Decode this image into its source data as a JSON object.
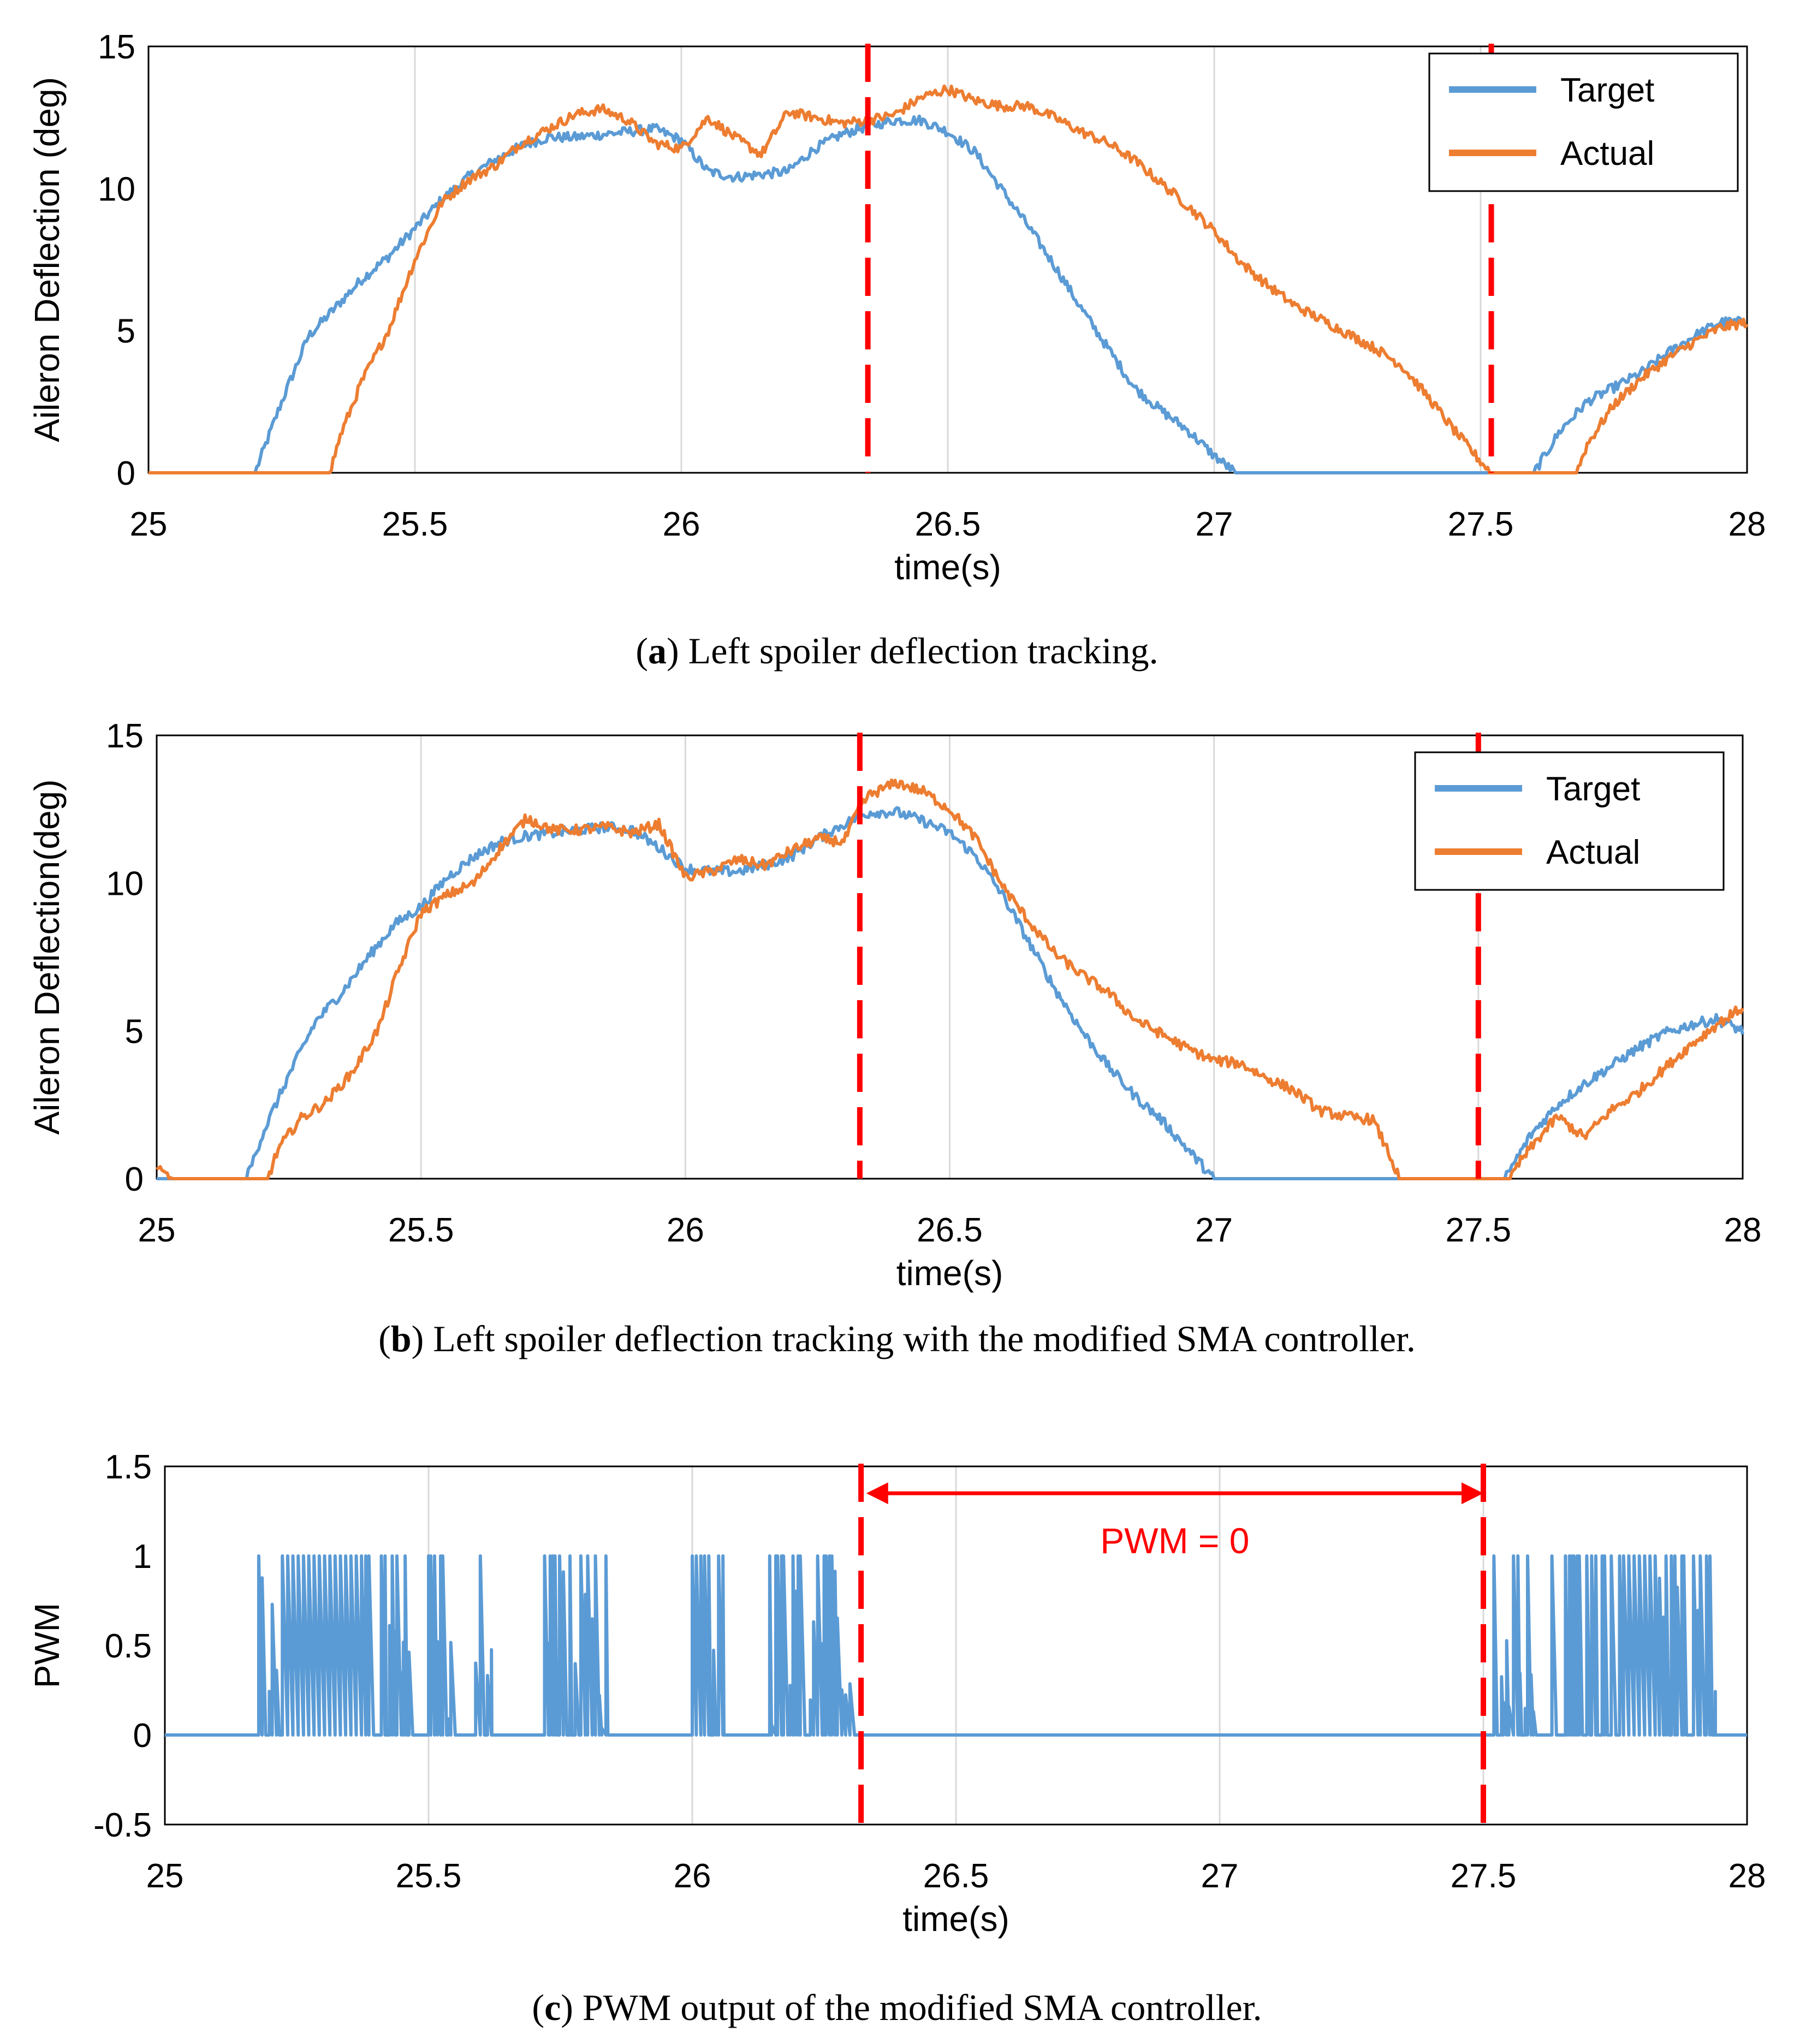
{
  "chart_data": [
    {
      "id": "a",
      "type": "line",
      "caption_letter": "a",
      "caption_text": "Left spoiler deflection tracking.",
      "xlabel": "time(s)",
      "ylabel": "Aileron Deflection (deg)",
      "xlim": [
        25,
        28
      ],
      "ylim": [
        0,
        15
      ],
      "xticks": [
        25,
        25.5,
        26,
        26.5,
        27,
        27.5,
        28
      ],
      "xtick_labels": [
        "25",
        "25.5",
        "26",
        "26.5",
        "27",
        "27.5",
        "28"
      ],
      "yticks": [
        0,
        5,
        10,
        15
      ],
      "ytick_labels": [
        "0",
        "5",
        "10",
        "15"
      ],
      "grid": "vertical",
      "legend": "top-right",
      "vlines": [
        26.35,
        27.52
      ],
      "series": [
        {
          "name": "Target",
          "color": "#5b9bd5",
          "points": [
            [
              25,
              0
            ],
            [
              25.2,
              0
            ],
            [
              25.22,
              1
            ],
            [
              25.25,
              2.5
            ],
            [
              25.3,
              4.8
            ],
            [
              25.35,
              5.8
            ],
            [
              25.4,
              6.8
            ],
            [
              25.45,
              7.6
            ],
            [
              25.5,
              8.6
            ],
            [
              25.55,
              9.6
            ],
            [
              25.6,
              10.4
            ],
            [
              25.65,
              11
            ],
            [
              25.7,
              11.5
            ],
            [
              25.75,
              11.8
            ],
            [
              25.8,
              11.8
            ],
            [
              25.85,
              11.9
            ],
            [
              25.9,
              12
            ],
            [
              25.95,
              12.1
            ],
            [
              26,
              11.7
            ],
            [
              26.05,
              10.6
            ],
            [
              26.1,
              10.4
            ],
            [
              26.15,
              10.5
            ],
            [
              26.2,
              10.6
            ],
            [
              26.25,
              11.4
            ],
            [
              26.3,
              11.9
            ],
            [
              26.35,
              12.2
            ],
            [
              26.4,
              12.4
            ],
            [
              26.45,
              12.4
            ],
            [
              26.5,
              12
            ],
            [
              26.55,
              11.3
            ],
            [
              26.6,
              10
            ],
            [
              26.65,
              8.7
            ],
            [
              26.7,
              7.3
            ],
            [
              26.75,
              5.8
            ],
            [
              26.8,
              4.4
            ],
            [
              26.85,
              3
            ],
            [
              26.9,
              2.2
            ],
            [
              26.95,
              1.5
            ],
            [
              27,
              0.6
            ],
            [
              27.04,
              0
            ],
            [
              27.6,
              0
            ],
            [
              27.65,
              1.5
            ],
            [
              27.7,
              2.5
            ],
            [
              27.75,
              3
            ],
            [
              27.8,
              3.5
            ],
            [
              27.85,
              4.2
            ],
            [
              27.9,
              4.8
            ],
            [
              27.95,
              5.3
            ],
            [
              28,
              5.3
            ]
          ]
        },
        {
          "name": "Actual",
          "color": "#ed7d31",
          "points": [
            [
              25,
              0
            ],
            [
              25.34,
              0
            ],
            [
              25.36,
              1.3
            ],
            [
              25.4,
              3.2
            ],
            [
              25.45,
              5
            ],
            [
              25.5,
              7.5
            ],
            [
              25.55,
              9.5
            ],
            [
              25.6,
              10.3
            ],
            [
              25.65,
              10.8
            ],
            [
              25.7,
              11.6
            ],
            [
              25.75,
              12.1
            ],
            [
              25.8,
              12.6
            ],
            [
              25.85,
              12.8
            ],
            [
              25.9,
              12.4
            ],
            [
              25.95,
              11.6
            ],
            [
              26,
              11.4
            ],
            [
              26.05,
              12.5
            ],
            [
              26.1,
              11.8
            ],
            [
              26.15,
              11.2
            ],
            [
              26.2,
              12.7
            ],
            [
              26.25,
              12.5
            ],
            [
              26.3,
              12.3
            ],
            [
              26.35,
              12.4
            ],
            [
              26.4,
              12.6
            ],
            [
              26.45,
              13.2
            ],
            [
              26.5,
              13.5
            ],
            [
              26.55,
              13.1
            ],
            [
              26.6,
              12.9
            ],
            [
              26.65,
              12.9
            ],
            [
              26.7,
              12.5
            ],
            [
              26.75,
              12
            ],
            [
              26.8,
              11.6
            ],
            [
              26.85,
              11
            ],
            [
              26.9,
              10.2
            ],
            [
              26.95,
              9.4
            ],
            [
              27,
              8.5
            ],
            [
              27.05,
              7.4
            ],
            [
              27.1,
              6.6
            ],
            [
              27.15,
              5.9
            ],
            [
              27.2,
              5.4
            ],
            [
              27.25,
              4.9
            ],
            [
              27.3,
              4.4
            ],
            [
              27.35,
              3.8
            ],
            [
              27.4,
              2.7
            ],
            [
              27.45,
              1.5
            ],
            [
              27.5,
              0.4
            ],
            [
              27.52,
              0
            ],
            [
              27.68,
              0
            ],
            [
              27.7,
              1
            ],
            [
              27.75,
              2.4
            ],
            [
              27.8,
              3.3
            ],
            [
              27.85,
              4
            ],
            [
              27.9,
              4.6
            ],
            [
              27.95,
              5.1
            ],
            [
              28,
              5.3
            ]
          ]
        }
      ]
    },
    {
      "id": "b",
      "type": "line",
      "caption_letter": "b",
      "caption_text": "Left spoiler deflection tracking with the modified SMA controller.",
      "xlabel": "time(s)",
      "ylabel": "Aileron Deflection(deg)",
      "xlim": [
        25,
        28
      ],
      "ylim": [
        0,
        15
      ],
      "xticks": [
        25,
        25.5,
        26,
        26.5,
        27,
        27.5,
        28
      ],
      "xtick_labels": [
        "25",
        "25.5",
        "26",
        "26.5",
        "27",
        "27.5",
        "28"
      ],
      "yticks": [
        0,
        5,
        10,
        15
      ],
      "ytick_labels": [
        "0",
        "5",
        "10",
        "15"
      ],
      "grid": "vertical",
      "legend": "top-right",
      "vlines": [
        26.33,
        27.5
      ],
      "series": [
        {
          "name": "Target",
          "color": "#5b9bd5",
          "points": [
            [
              25,
              0
            ],
            [
              25.17,
              0
            ],
            [
              25.2,
              1.5
            ],
            [
              25.25,
              3.5
            ],
            [
              25.3,
              5.3
            ],
            [
              25.35,
              6.3
            ],
            [
              25.4,
              7.5
            ],
            [
              25.45,
              8.6
            ],
            [
              25.5,
              9.2
            ],
            [
              25.55,
              10.2
            ],
            [
              25.6,
              10.9
            ],
            [
              25.65,
              11.4
            ],
            [
              25.7,
              11.6
            ],
            [
              25.75,
              11.7
            ],
            [
              25.8,
              11.8
            ],
            [
              25.85,
              11.9
            ],
            [
              25.9,
              11.8
            ],
            [
              25.95,
              11.2
            ],
            [
              26,
              10.5
            ],
            [
              26.05,
              10.4
            ],
            [
              26.1,
              10.4
            ],
            [
              26.15,
              10.6
            ],
            [
              26.2,
              10.9
            ],
            [
              26.25,
              11.5
            ],
            [
              26.3,
              12
            ],
            [
              26.35,
              12.4
            ],
            [
              26.4,
              12.4
            ],
            [
              26.45,
              12.1
            ],
            [
              26.5,
              11.7
            ],
            [
              26.55,
              10.9
            ],
            [
              26.6,
              9.6
            ],
            [
              26.65,
              8
            ],
            [
              26.7,
              6.4
            ],
            [
              26.75,
              5
            ],
            [
              26.8,
              3.8
            ],
            [
              26.85,
              2.8
            ],
            [
              26.9,
              2
            ],
            [
              26.95,
              1
            ],
            [
              27,
              0
            ],
            [
              27.55,
              0
            ],
            [
              27.6,
              1.5
            ],
            [
              27.65,
              2.5
            ],
            [
              27.7,
              3.2
            ],
            [
              27.75,
              3.8
            ],
            [
              27.8,
              4.4
            ],
            [
              27.85,
              4.9
            ],
            [
              27.9,
              5.2
            ],
            [
              27.95,
              5.4
            ],
            [
              28,
              5
            ]
          ]
        },
        {
          "name": "Actual",
          "color": "#ed7d31",
          "points": [
            [
              25,
              0.3
            ],
            [
              25.03,
              0
            ],
            [
              25.21,
              0
            ],
            [
              25.23,
              1
            ],
            [
              25.27,
              2
            ],
            [
              25.32,
              2.6
            ],
            [
              25.37,
              3.6
            ],
            [
              25.42,
              5.1
            ],
            [
              25.45,
              6.7
            ],
            [
              25.5,
              9
            ],
            [
              25.55,
              9.6
            ],
            [
              25.6,
              10
            ],
            [
              25.65,
              11.2
            ],
            [
              25.7,
              12.2
            ],
            [
              25.75,
              11.8
            ],
            [
              25.8,
              11.8
            ],
            [
              25.85,
              11.9
            ],
            [
              25.9,
              11.7
            ],
            [
              25.95,
              12
            ],
            [
              26,
              10.2
            ],
            [
              26.05,
              10.4
            ],
            [
              26.1,
              10.8
            ],
            [
              26.15,
              10.6
            ],
            [
              26.2,
              11.1
            ],
            [
              26.25,
              11.5
            ],
            [
              26.3,
              11.4
            ],
            [
              26.33,
              12.6
            ],
            [
              26.35,
              13
            ],
            [
              26.4,
              13.4
            ],
            [
              26.45,
              13.1
            ],
            [
              26.5,
              12.5
            ],
            [
              26.55,
              11.5
            ],
            [
              26.6,
              9.9
            ],
            [
              26.65,
              8.7
            ],
            [
              26.7,
              7.6
            ],
            [
              26.75,
              6.9
            ],
            [
              26.8,
              6.3
            ],
            [
              26.85,
              5.4
            ],
            [
              26.9,
              4.9
            ],
            [
              26.95,
              4.4
            ],
            [
              27,
              4
            ],
            [
              27.05,
              3.9
            ],
            [
              27.1,
              3.4
            ],
            [
              27.15,
              3
            ],
            [
              27.2,
              2.3
            ],
            [
              27.25,
              2.1
            ],
            [
              27.3,
              2
            ],
            [
              27.33,
              0.9
            ],
            [
              27.35,
              0
            ],
            [
              27.56,
              0
            ],
            [
              27.58,
              0.6
            ],
            [
              27.62,
              1.5
            ],
            [
              27.65,
              2.1
            ],
            [
              27.7,
              1.4
            ],
            [
              27.75,
              2.3
            ],
            [
              27.8,
              2.9
            ],
            [
              27.85,
              3.7
            ],
            [
              27.9,
              4.5
            ],
            [
              27.95,
              5.2
            ],
            [
              28,
              5.8
            ]
          ]
        }
      ]
    },
    {
      "id": "c",
      "type": "line",
      "caption_letter": "c",
      "caption_text": "PWM output of the modified SMA controller.",
      "xlabel": "time(s)",
      "ylabel": "PWM",
      "xlim": [
        25,
        28
      ],
      "ylim": [
        -0.5,
        1.5
      ],
      "xticks": [
        25,
        25.5,
        26,
        26.5,
        27,
        27.5,
        28
      ],
      "xtick_labels": [
        "25",
        "25.5",
        "26",
        "26.5",
        "27",
        "27.5",
        "28"
      ],
      "yticks": [
        -0.5,
        0,
        0.5,
        1,
        1.5
      ],
      "ytick_labels": [
        "-0.5",
        "0",
        "0.5",
        "1",
        "1.5"
      ],
      "grid": "vertical",
      "legend": "none",
      "vlines": [
        26.32,
        27.5
      ],
      "annotation": {
        "text": "PWM = 0",
        "x_from": 26.33,
        "x_to": 27.5
      },
      "series": [
        {
          "name": "",
          "color": "#5b9bd5",
          "bursts": [
            [
              25.17,
              25.42
            ],
            [
              25.42,
              25.47
            ],
            [
              25.5,
              25.62
            ],
            [
              25.72,
              25.84
            ],
            [
              26.0,
              26.06
            ],
            [
              26.14,
              26.31
            ],
            [
              27.52,
              27.6
            ],
            [
              27.63,
              27.94
            ]
          ],
          "full_on_spans": [
            [
              25.22,
              25.37
            ],
            [
              27.76,
              27.82
            ]
          ]
        }
      ]
    }
  ]
}
